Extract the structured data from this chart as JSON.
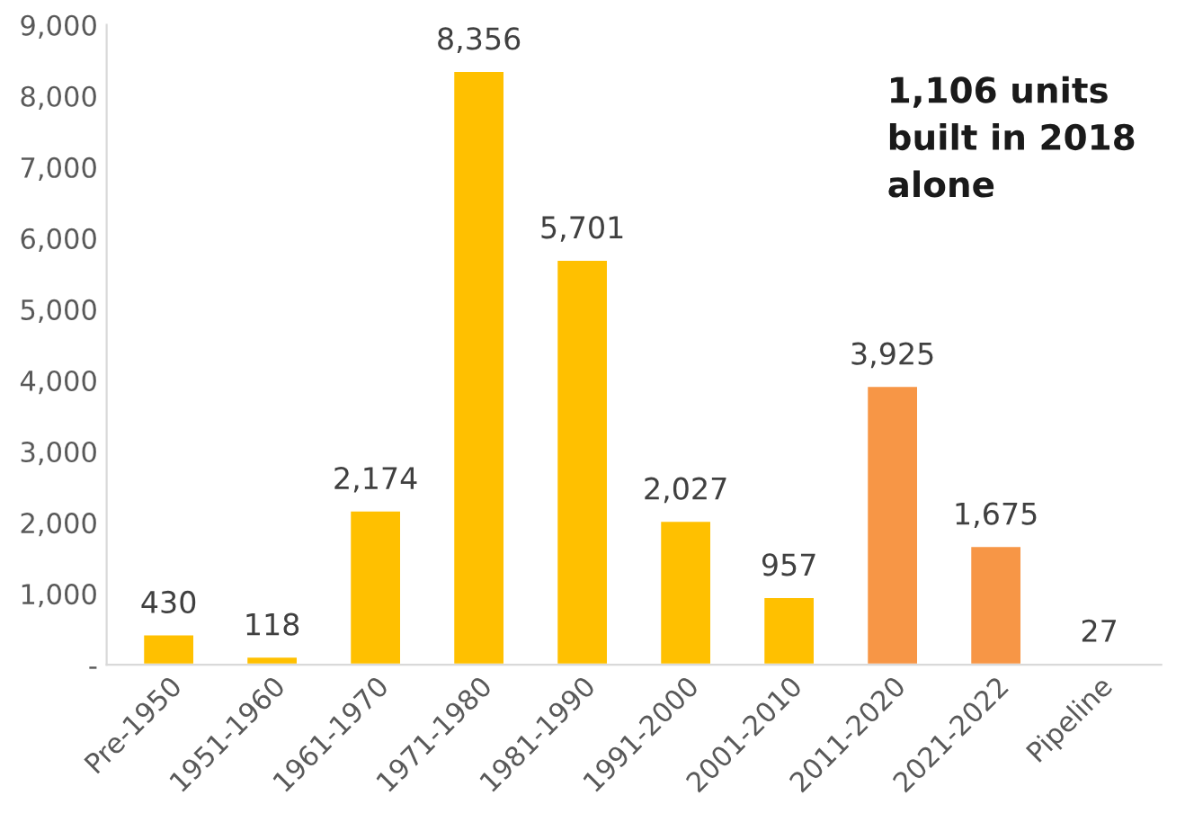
{
  "chart_data": {
    "type": "bar",
    "categories": [
      "Pre-1950",
      "1951-1960",
      "1961-1970",
      "1971-1980",
      "1981-1990",
      "1991-2000",
      "2001-2010",
      "2011-2020",
      "2021-2022",
      "Pipeline"
    ],
    "values": [
      430,
      118,
      2174,
      8356,
      5701,
      2027,
      957,
      3925,
      1675,
      27
    ],
    "colors": [
      "#ffc000",
      "#ffc000",
      "#ffc000",
      "#ffc000",
      "#ffc000",
      "#ffc000",
      "#ffc000",
      "#f79646",
      "#f79646",
      "#ffc000"
    ],
    "value_labels": [
      "430",
      "118",
      "2,174",
      "8,356",
      "5,701",
      "2,027",
      "957",
      "3,925",
      "1,675",
      "27"
    ],
    "ylim": [
      0,
      9000
    ],
    "yticks": [
      {
        "value": 0,
        "label": "-"
      },
      {
        "value": 1000,
        "label": "1,000"
      },
      {
        "value": 2000,
        "label": "2,000"
      },
      {
        "value": 3000,
        "label": "3,000"
      },
      {
        "value": 4000,
        "label": "4,000"
      },
      {
        "value": 5000,
        "label": "5,000"
      },
      {
        "value": 6000,
        "label": "6,000"
      },
      {
        "value": 7000,
        "label": "7,000"
      },
      {
        "value": 8000,
        "label": "8,000"
      },
      {
        "value": 9000,
        "label": "9,000"
      }
    ],
    "annotations": [
      "1,106 units\nbuilt in 2018\nalone"
    ],
    "grid": false,
    "legend": false
  }
}
